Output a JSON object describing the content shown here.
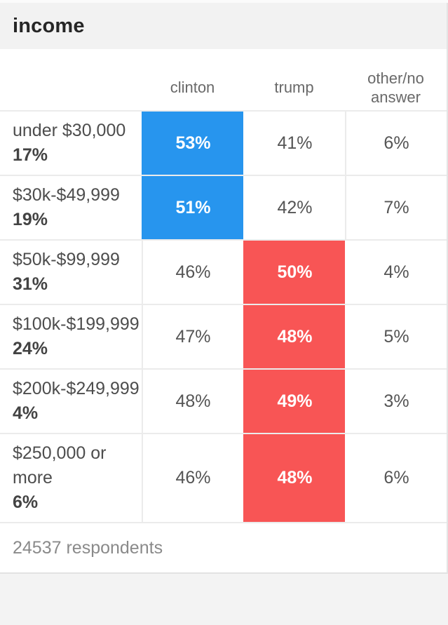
{
  "header": {
    "title": "income"
  },
  "table": {
    "columns": [
      {
        "key": "clinton",
        "label": "clinton"
      },
      {
        "key": "trump",
        "label": "trump"
      },
      {
        "key": "other",
        "label": "other/no answer"
      }
    ],
    "rows": [
      {
        "label": "under $30,000",
        "share": "17%",
        "clinton": "53%",
        "trump": "41%",
        "other": "6%",
        "winner": "clinton"
      },
      {
        "label": "$30k-$49,999",
        "share": "19%",
        "clinton": "51%",
        "trump": "42%",
        "other": "7%",
        "winner": "clinton"
      },
      {
        "label": "$50k-$99,999",
        "share": "31%",
        "clinton": "46%",
        "trump": "50%",
        "other": "4%",
        "winner": "trump"
      },
      {
        "label": "$100k-$199,999",
        "share": "24%",
        "clinton": "47%",
        "trump": "48%",
        "other": "5%",
        "winner": "trump"
      },
      {
        "label": "$200k-$249,999",
        "share": "4%",
        "clinton": "48%",
        "trump": "49%",
        "other": "3%",
        "winner": "trump"
      },
      {
        "label": "$250,000 or more",
        "share": "6%",
        "clinton": "46%",
        "trump": "48%",
        "other": "6%",
        "winner": "trump"
      }
    ],
    "footer_note": "24537 respondents"
  },
  "colors": {
    "clinton": "#2795ee",
    "trump": "#f85555"
  },
  "chart_data": {
    "type": "table",
    "title": "income",
    "categories": [
      "under $30,000",
      "$30k-$49,999",
      "$50k-$99,999",
      "$100k-$199,999",
      "$200k-$249,999",
      "$250,000 or more"
    ],
    "category_share_of_respondents_pct": [
      17,
      19,
      31,
      24,
      4,
      6
    ],
    "series": [
      {
        "name": "clinton",
        "values": [
          53,
          51,
          46,
          47,
          48,
          46
        ],
        "color": "#2795ee"
      },
      {
        "name": "trump",
        "values": [
          41,
          42,
          50,
          48,
          49,
          48
        ],
        "color": "#f85555"
      },
      {
        "name": "other/no answer",
        "values": [
          6,
          7,
          4,
          5,
          3,
          6
        ]
      }
    ],
    "highlighted_winner_per_row": [
      "clinton",
      "clinton",
      "trump",
      "trump",
      "trump",
      "trump"
    ],
    "respondents": 24537,
    "layout_hints": {
      "highlight": "winning cell filled with party color",
      "grid": "light gray separators"
    }
  }
}
